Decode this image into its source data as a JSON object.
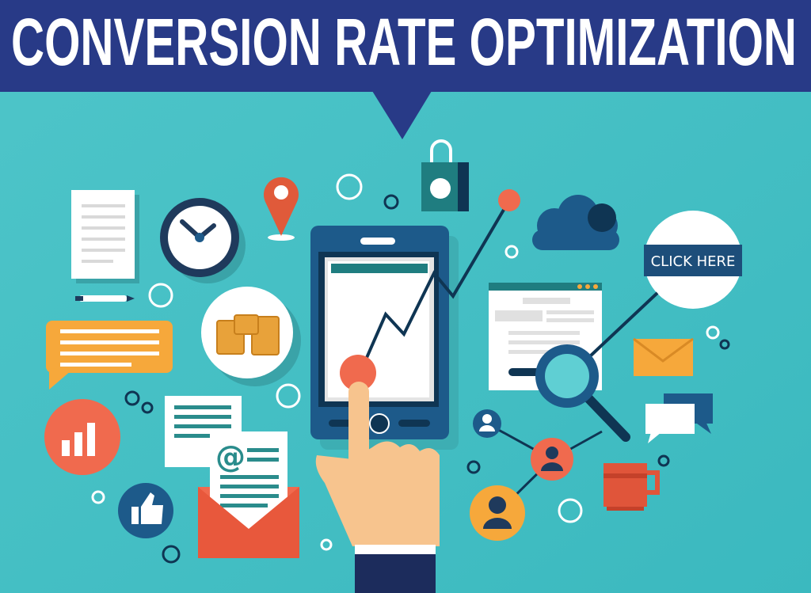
{
  "banner": {
    "title": "CONVERSION RATE OPTIMIZATION"
  },
  "button": {
    "label": "CLICK HERE"
  },
  "email": {
    "symbol": "@"
  },
  "colors": {
    "banner": "#283a87",
    "background": "#45c0c5",
    "navy": "#1d5a8a",
    "orange": "#f06a4e",
    "yellow": "#f6a83b",
    "skin": "#f7c48e"
  }
}
